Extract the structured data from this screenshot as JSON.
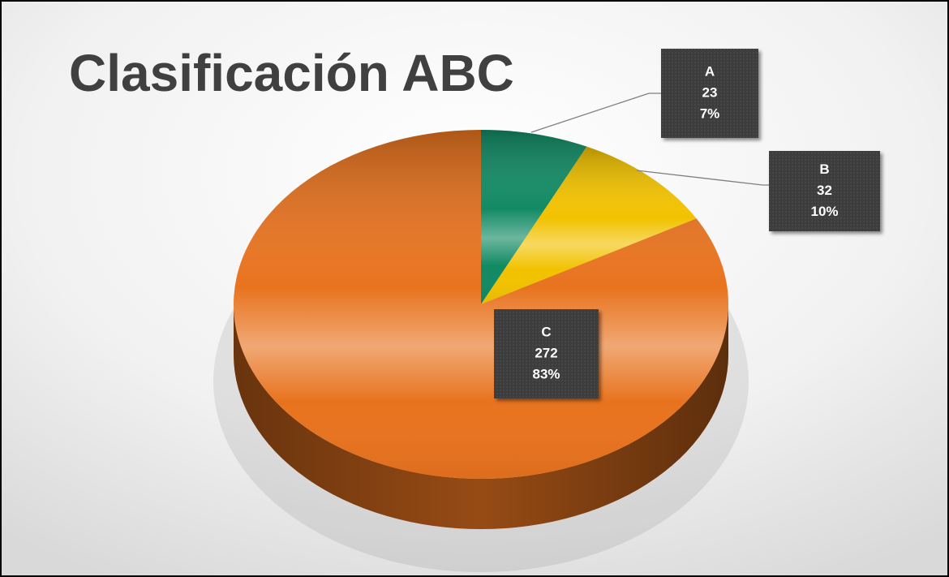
{
  "chart_data": {
    "type": "pie",
    "title": "Clasificación ABC",
    "categories": [
      "A",
      "B",
      "C"
    ],
    "values": [
      23,
      32,
      272
    ],
    "percent_labels": [
      "7%",
      "10%",
      "83%"
    ],
    "colors": [
      "#128a63",
      "#f2c200",
      "#e8731f"
    ]
  }
}
